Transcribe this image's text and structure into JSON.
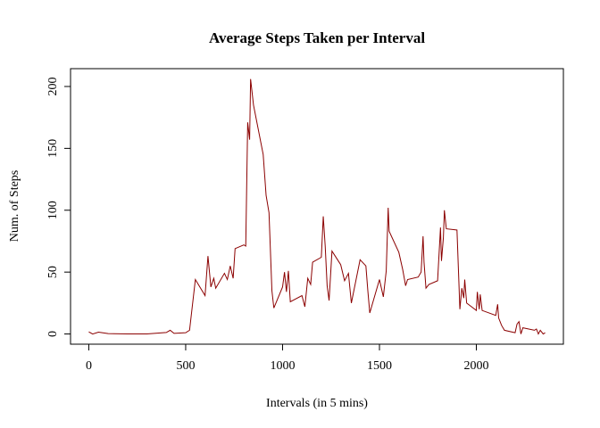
{
  "chart_data": {
    "type": "line",
    "title": "Average Steps Taken per Interval",
    "xlabel": "Intervals (in 5 mins)",
    "ylabel": "Num. of Steps",
    "x": [
      0,
      20,
      50,
      100,
      200,
      300,
      400,
      420,
      440,
      500,
      520,
      550,
      600,
      615,
      630,
      645,
      655,
      700,
      715,
      730,
      745,
      755,
      800,
      810,
      820,
      830,
      835,
      850,
      900,
      915,
      930,
      945,
      955,
      1000,
      1010,
      1020,
      1030,
      1040,
      1100,
      1115,
      1130,
      1145,
      1155,
      1200,
      1210,
      1220,
      1230,
      1240,
      1255,
      1300,
      1320,
      1340,
      1355,
      1400,
      1430,
      1440,
      1450,
      1500,
      1520,
      1535,
      1545,
      1550,
      1600,
      1620,
      1635,
      1645,
      1700,
      1715,
      1725,
      1730,
      1740,
      1755,
      1800,
      1815,
      1820,
      1830,
      1835,
      1845,
      1900,
      1915,
      1925,
      1935,
      1940,
      1950,
      2000,
      2005,
      2015,
      2020,
      2030,
      2100,
      2110,
      2115,
      2130,
      2145,
      2200,
      2210,
      2220,
      2230,
      2240,
      2300,
      2310,
      2320,
      2330,
      2345,
      2355
    ],
    "series": [
      {
        "name": "steps",
        "color": "#8b0000",
        "values": [
          1.7,
          0,
          1.5,
          0.3,
          0,
          0,
          1.2,
          3,
          0.5,
          1,
          3,
          44,
          31,
          63,
          38,
          45,
          37,
          49,
          44,
          55,
          45,
          69,
          72,
          71,
          171,
          157,
          206,
          185,
          145,
          112,
          98,
          35,
          21,
          38,
          50,
          34,
          51,
          26,
          31,
          22,
          45,
          40,
          58,
          62,
          95,
          71,
          39,
          27,
          67,
          56,
          43,
          49,
          25,
          60,
          55,
          35,
          17,
          44,
          30,
          51,
          102,
          83,
          66,
          52,
          39,
          44,
          46,
          50,
          79,
          58,
          37,
          40,
          43,
          86,
          59,
          78,
          100,
          85,
          84,
          20,
          37,
          29,
          44,
          25,
          19,
          34,
          20,
          32,
          19,
          15,
          24,
          13,
          7,
          3,
          1,
          8,
          10,
          0,
          5,
          3,
          4,
          0,
          3,
          0,
          1
        ]
      }
    ],
    "xlim": [
      -94.2,
      2449.2
    ],
    "ylim": [
      -8.25,
      214.4
    ],
    "xticks": [
      0,
      500,
      1000,
      1500,
      2000
    ],
    "yticks": [
      0,
      50,
      100,
      150,
      200
    ]
  }
}
